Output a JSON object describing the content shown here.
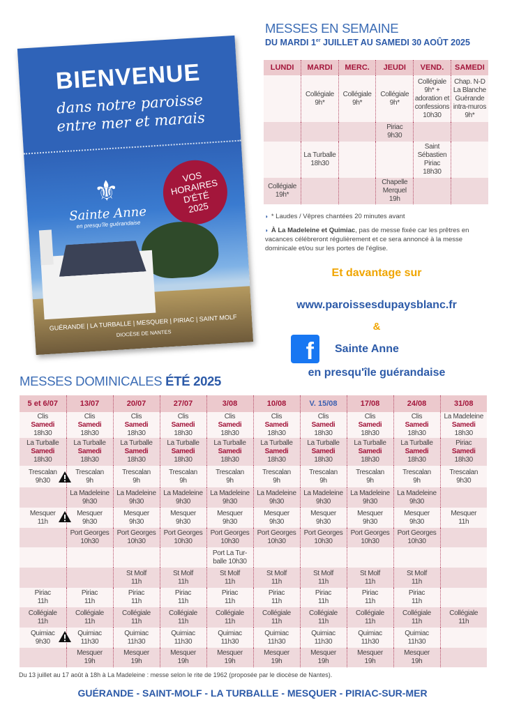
{
  "poster": {
    "title": "BIENVENUE",
    "subtitle_line1": "dans notre paroisse",
    "subtitle_line2": "entre mer et marais",
    "badge": [
      "VOS",
      "HORAIRES",
      "D'ÉTÉ",
      "2025"
    ],
    "logo_name": "Sainte Anne",
    "logo_sub": "en presqu'île guérandaise",
    "towns": "GUÉRANDE | LA TURBALLE | MESQUER | PIRIAC | SAINT MOLF",
    "diocese": "DIOCÈSE DE NANTES"
  },
  "weekday": {
    "title": "MESSES EN SEMAINE",
    "subtitle_pre": "DU MARDI 1",
    "subtitle_sup": "er",
    "subtitle_post": " JUILLET AU SAMEDI 30 AOÛT 2025",
    "headers": [
      "LUNDI",
      "MARDI",
      "MERC.",
      "JEUDI",
      "VEND.",
      "SAMEDI"
    ],
    "rows": [
      [
        "",
        "Collégiale\n9h*",
        "Collégiale\n9h*",
        "Collégiale\n9h*",
        "Collégiale\n9h* +\nadoration et\nconfessions\n10h30",
        "Chap. N-D\nLa Blanche\nGuérande\nintra-muros\n9h*"
      ],
      [
        "",
        "",
        "",
        "Piriac\n9h30",
        "",
        ""
      ],
      [
        "",
        "La Turballe\n18h30",
        "",
        "",
        "Saint\nSébastien\nPiriac\n18h30",
        ""
      ],
      [
        "Collégiale\n19h*",
        "",
        "",
        "Chapelle\nMerquel\n19h",
        "",
        ""
      ]
    ],
    "note1": "* Laudes / Vêpres chantées 20 minutes avant",
    "note2_bold": "À La Madeleine et Quimiac",
    "note2": ", pas de messe fixée car les prêtres en vacances célébreront régulièrement et ce sera annoncé à la messe dominicale et/ou sur les portes de l'église."
  },
  "more": {
    "label": "Et davantage sur",
    "url": "www.paroissesdupaysblanc.fr",
    "and": "&",
    "fb_name": "Sainte Anne",
    "fb_sub": "en presqu'île guérandaise",
    "fb_icon": "facebook-icon",
    "accent": "#f0a500",
    "blue": "#2c5aa8"
  },
  "sunday": {
    "title_a": "MESSES DOMINICALES ",
    "title_b": "ÉTÉ 2025",
    "headers": [
      "5 et 6/07",
      "13/07",
      "20/07",
      "27/07",
      "3/08",
      "10/08",
      "V. 15/08",
      "17/08",
      "24/08",
      "31/08"
    ],
    "highlight_header": "V. 15/08",
    "highlight_color": "#3b5fb0",
    "day_label": "Samedi",
    "rows": [
      [
        [
          "Clis",
          "Samedi",
          "18h30"
        ],
        [
          "Clis",
          "Samedi",
          "18h30"
        ],
        [
          "Clis",
          "Samedi",
          "18h30"
        ],
        [
          "Clis",
          "Samedi",
          "18h30"
        ],
        [
          "Clis",
          "Samedi",
          "18h30"
        ],
        [
          "Clis",
          "Samedi",
          "18h30"
        ],
        [
          "Clis",
          "Samedi",
          "18h30"
        ],
        [
          "Clis",
          "Samedi",
          "18h30"
        ],
        [
          "Clis",
          "Samedi",
          "18h30"
        ],
        [
          "La Madeleine",
          "Samedi",
          "18h30"
        ]
      ],
      [
        [
          "La Turballe",
          "Samedi",
          "18h30"
        ],
        [
          "La Turballe",
          "Samedi",
          "18h30"
        ],
        [
          "La Turballe",
          "Samedi",
          "18h30"
        ],
        [
          "La Turballe",
          "Samedi",
          "18h30"
        ],
        [
          "La Turballe",
          "Samedi",
          "18h30"
        ],
        [
          "La Turballe",
          "Samedi",
          "18h30"
        ],
        [
          "La Turballe",
          "Samedi",
          "18h30"
        ],
        [
          "La Turballe",
          "Samedi",
          "18h30"
        ],
        [
          "La Turballe",
          "Samedi",
          "18h30"
        ],
        [
          "Piriac",
          "Samedi",
          "18h30"
        ]
      ],
      [
        [
          "Trescalan",
          "9h30"
        ],
        [
          "Trescalan",
          "9h"
        ],
        [
          "Trescalan",
          "9h"
        ],
        [
          "Trescalan",
          "9h"
        ],
        [
          "Trescalan",
          "9h"
        ],
        [
          "Trescalan",
          "9h"
        ],
        [
          "Trescalan",
          "9h"
        ],
        [
          "Trescalan",
          "9h"
        ],
        [
          "Trescalan",
          "9h"
        ],
        [
          "Trescalan",
          "9h30"
        ]
      ],
      [
        [],
        [
          "La Madeleine",
          "9h30"
        ],
        [
          "La Madeleine",
          "9h30"
        ],
        [
          "La Madeleine",
          "9h30"
        ],
        [
          "La Madeleine",
          "9h30"
        ],
        [
          "La Madeleine",
          "9h30"
        ],
        [
          "La Madeleine",
          "9h30"
        ],
        [
          "La Madeleine",
          "9h30"
        ],
        [
          "La Madeleine",
          "9h30"
        ],
        []
      ],
      [
        [
          "Mesquer",
          "11h"
        ],
        [
          "Mesquer",
          "9h30"
        ],
        [
          "Mesquer",
          "9h30"
        ],
        [
          "Mesquer",
          "9h30"
        ],
        [
          "Mesquer",
          "9h30"
        ],
        [
          "Mesquer",
          "9h30"
        ],
        [
          "Mesquer",
          "9h30"
        ],
        [
          "Mesquer",
          "9h30"
        ],
        [
          "Mesquer",
          "9h30"
        ],
        [
          "Mesquer",
          "11h"
        ]
      ],
      [
        [],
        [
          "Port Georges",
          "10h30"
        ],
        [
          "Port Georges",
          "10h30"
        ],
        [
          "Port Georges",
          "10h30"
        ],
        [
          "Port Georges",
          "10h30"
        ],
        [
          "Port Georges",
          "10h30"
        ],
        [
          "Port Georges",
          "10h30"
        ],
        [
          "Port Georges",
          "10h30"
        ],
        [
          "Port Georges",
          "10h30"
        ],
        []
      ],
      [
        [],
        [],
        [],
        [],
        [
          "Port La Tur-",
          "balle 10h30"
        ],
        [],
        [],
        [],
        [],
        []
      ],
      [
        [],
        [],
        [
          "St Molf",
          "11h"
        ],
        [
          "St Molf",
          "11h"
        ],
        [
          "St Molf",
          "11h"
        ],
        [
          "St Molf",
          "11h"
        ],
        [
          "St Molf",
          "11h"
        ],
        [
          "St Molf",
          "11h"
        ],
        [
          "St Molf",
          "11h"
        ],
        []
      ],
      [
        [
          "Piriac",
          "11h"
        ],
        [
          "Piriac",
          "11h"
        ],
        [
          "Piriac",
          "11h"
        ],
        [
          "Piriac",
          "11h"
        ],
        [
          "Piriac",
          "11h"
        ],
        [
          "Piriac",
          "11h"
        ],
        [
          "Piriac",
          "11h"
        ],
        [
          "Piriac",
          "11h"
        ],
        [
          "Piriac",
          "11h"
        ],
        []
      ],
      [
        [
          "Collégiale",
          "11h"
        ],
        [
          "Collégiale",
          "11h"
        ],
        [
          "Collégiale",
          "11h"
        ],
        [
          "Collégiale",
          "11h"
        ],
        [
          "Collégiale",
          "11h"
        ],
        [
          "Collégiale",
          "11h"
        ],
        [
          "Collégiale",
          "11h"
        ],
        [
          "Collégiale",
          "11h"
        ],
        [
          "Collégiale",
          "11h"
        ],
        [
          "Collégiale",
          "11h"
        ]
      ],
      [
        [
          "Quimiac",
          "9h30"
        ],
        [
          "Quimiac",
          "11h30"
        ],
        [
          "Quimiac",
          "11h30"
        ],
        [
          "Quimiac",
          "11h30"
        ],
        [
          "Quimiac",
          "11h30"
        ],
        [
          "Quimiac",
          "11h30"
        ],
        [
          "Quimiac",
          "11h30"
        ],
        [
          "Quimiac",
          "11h30"
        ],
        [
          "Quimiac",
          "11h30"
        ],
        []
      ],
      [
        [],
        [
          "Mesquer",
          "19h"
        ],
        [
          "Mesquer",
          "19h"
        ],
        [
          "Mesquer",
          "19h"
        ],
        [
          "Mesquer",
          "19h"
        ],
        [
          "Mesquer",
          "19h"
        ],
        [
          "Mesquer",
          "19h"
        ],
        [
          "Mesquer",
          "19h"
        ],
        [
          "Mesquer",
          "19h"
        ],
        []
      ]
    ],
    "warning_icon": "warning-icon",
    "footnote": "Du 13 juillet au 17 août à 18h à La Madeleine : messe selon le rite de 1962 (proposée par le diocèse de Nantes)."
  },
  "footer": "GUÉRANDE - SAINT-MOLF - LA TURBALLE - MESQUER - PIRIAC-SUR-MER"
}
